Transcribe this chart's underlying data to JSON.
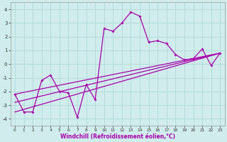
{
  "xlabel": "Windchill (Refroidissement éolien,°C)",
  "bg_color": "#d0ecec",
  "line_color": "#aa00aa",
  "grid_color": "#b0d8d8",
  "xlim": [
    -0.5,
    23.5
  ],
  "ylim": [
    -4.5,
    4.5
  ],
  "yticks": [
    -4,
    -3,
    -2,
    -1,
    0,
    1,
    2,
    3,
    4
  ],
  "xticks": [
    0,
    1,
    2,
    3,
    4,
    5,
    6,
    7,
    8,
    9,
    10,
    11,
    12,
    13,
    14,
    15,
    16,
    17,
    18,
    19,
    20,
    21,
    22,
    23
  ],
  "series1_x": [
    0,
    1,
    2,
    3,
    4,
    5,
    6,
    7,
    8,
    9,
    10,
    11,
    12,
    13,
    14,
    15,
    16,
    17,
    18,
    19,
    20,
    21,
    22,
    23
  ],
  "series1_y": [
    -2.2,
    -3.5,
    -3.5,
    -1.2,
    -0.8,
    -2.0,
    -2.1,
    -3.9,
    -1.5,
    -2.6,
    2.6,
    2.4,
    3.0,
    3.8,
    3.5,
    1.6,
    1.7,
    1.5,
    0.7,
    0.3,
    0.4,
    1.1,
    -0.1,
    0.8
  ],
  "series2_x": [
    0,
    23
  ],
  "series2_y": [
    -2.2,
    0.8
  ],
  "series3_x": [
    0,
    23
  ],
  "series3_y": [
    -2.8,
    0.8
  ],
  "series4_x": [
    0,
    23
  ],
  "series4_y": [
    -3.5,
    0.8
  ],
  "xlabel_color": "#aa00aa",
  "xlabel_fontsize": 5.5,
  "tick_fontsize": 5,
  "lw": 0.9
}
